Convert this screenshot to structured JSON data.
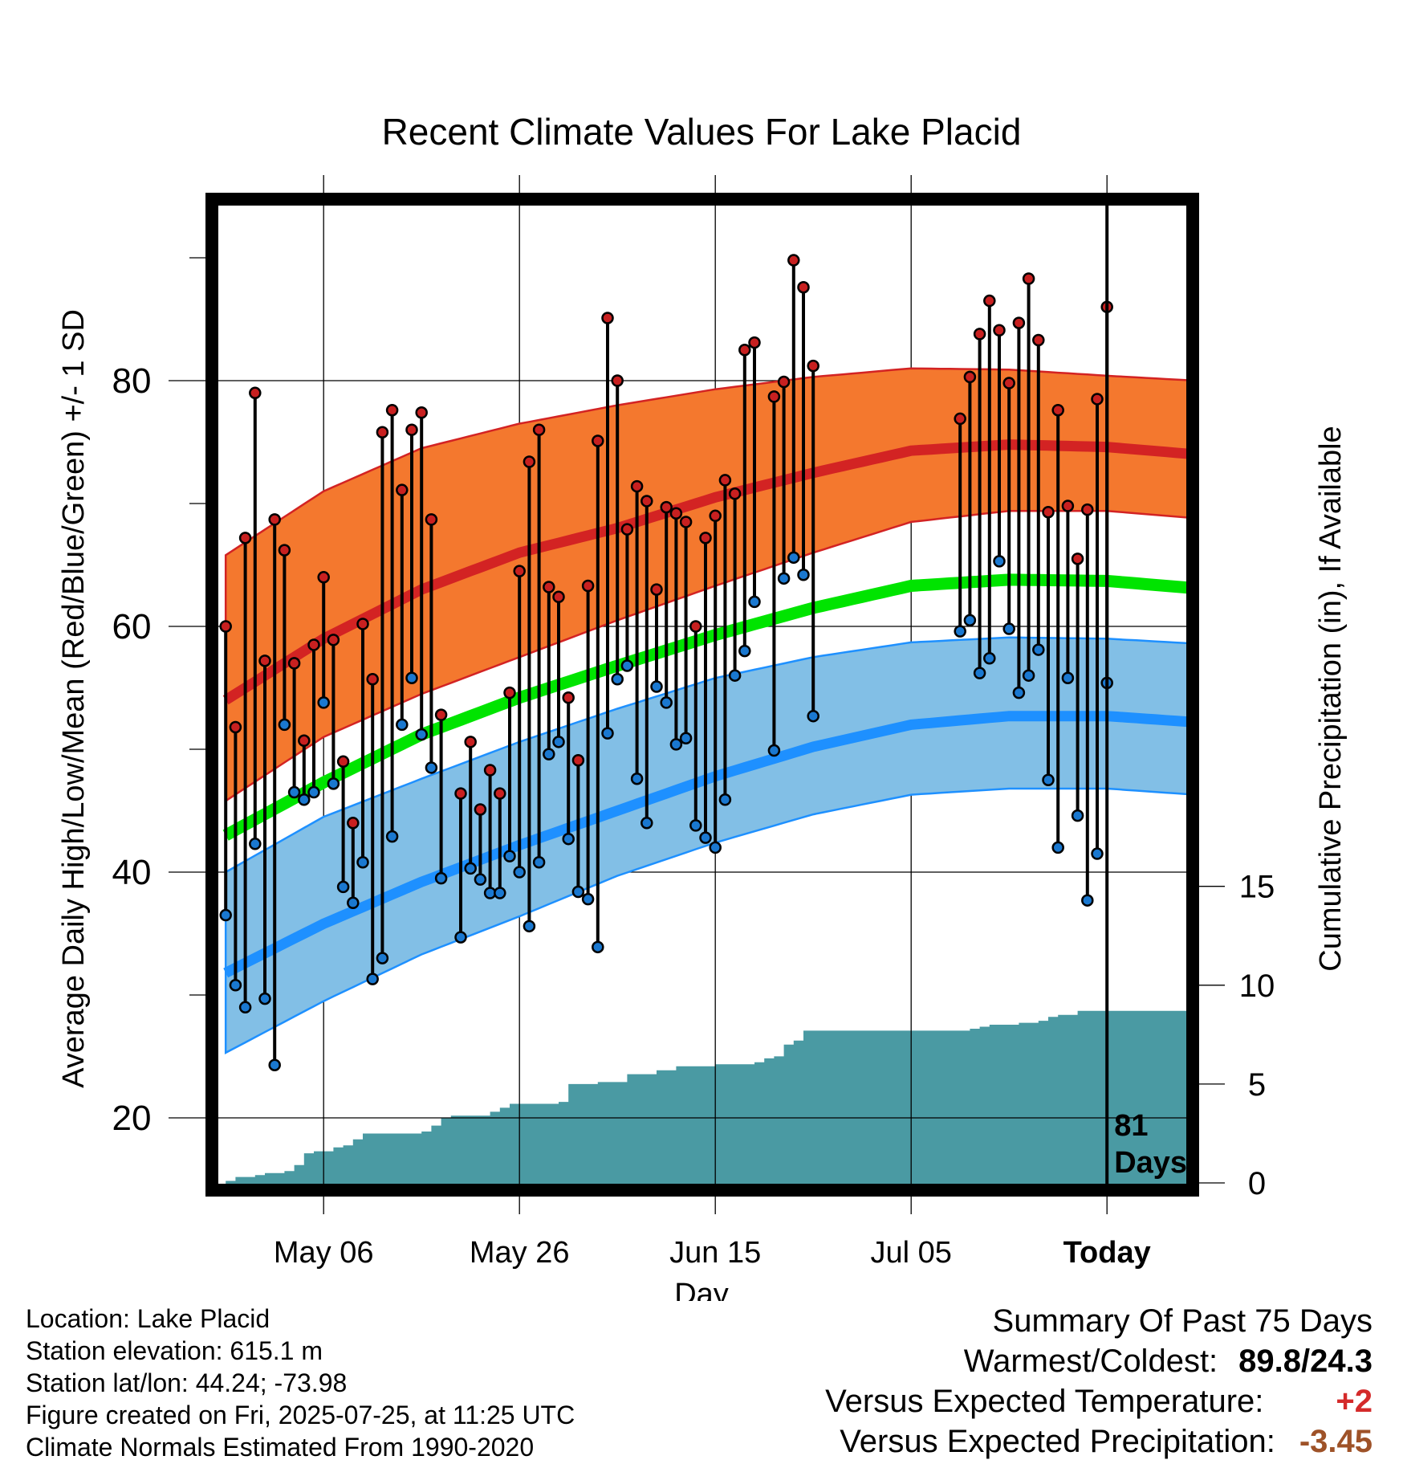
{
  "chart_data": {
    "type": "line",
    "title": "Recent Climate Values For Lake Placid",
    "xlabel": "Day",
    "ylabel_left": "Average Daily High/Low/Mean (Red/Blue/Green) +/- 1 SD",
    "ylabel_right": "Cumulative Precipitation (in), If Available",
    "x_tick_labels": [
      "May 06",
      "May 26",
      "Jun 15",
      "Jul 05",
      "Today"
    ],
    "x_tick_days": [
      10,
      30,
      50,
      70,
      90
    ],
    "x_range_days": [
      -1,
      100
    ],
    "y_left_ticks": [
      20,
      40,
      60,
      80
    ],
    "y_left_range": [
      15,
      90
    ],
    "y_right_ticks": [
      0,
      5,
      10,
      15
    ],
    "today_marker": {
      "line1": "81",
      "line2": "Days"
    },
    "colors": {
      "high_band": "#f4782e",
      "high_mean": "#d32323",
      "low_band": "#82bfe6",
      "low_mean": "#1e90ff",
      "mean_line": "#00e400",
      "precip": "#4a9aa3",
      "high_point": "#c82020",
      "low_point": "#1a78d0"
    },
    "normal_high_mean": [
      [
        0,
        54.0
      ],
      [
        10,
        59.0
      ],
      [
        20,
        63.0
      ],
      [
        30,
        66.0
      ],
      [
        40,
        68.0
      ],
      [
        50,
        70.5
      ],
      [
        60,
        72.5
      ],
      [
        70,
        74.3
      ],
      [
        80,
        74.8
      ],
      [
        90,
        74.6
      ],
      [
        99,
        74.0
      ]
    ],
    "normal_high_upper": [
      [
        0,
        65.8
      ],
      [
        10,
        71.0
      ],
      [
        20,
        74.5
      ],
      [
        30,
        76.5
      ],
      [
        40,
        78.0
      ],
      [
        50,
        79.3
      ],
      [
        60,
        80.3
      ],
      [
        70,
        81.0
      ],
      [
        80,
        80.9
      ],
      [
        90,
        80.4
      ],
      [
        99,
        80.0
      ]
    ],
    "normal_high_lower": [
      [
        0,
        45.8
      ],
      [
        10,
        51.0
      ],
      [
        20,
        54.5
      ],
      [
        30,
        57.5
      ],
      [
        40,
        60.5
      ],
      [
        50,
        63.3
      ],
      [
        60,
        66.0
      ],
      [
        70,
        68.5
      ],
      [
        80,
        69.4
      ],
      [
        90,
        69.4
      ],
      [
        99,
        68.8
      ]
    ],
    "normal_low_mean": [
      [
        0,
        31.8
      ],
      [
        10,
        35.8
      ],
      [
        20,
        39.2
      ],
      [
        30,
        42.2
      ],
      [
        40,
        45.0
      ],
      [
        50,
        47.8
      ],
      [
        60,
        50.2
      ],
      [
        70,
        52.0
      ],
      [
        80,
        52.7
      ],
      [
        90,
        52.7
      ],
      [
        99,
        52.2
      ]
    ],
    "normal_low_upper": [
      [
        0,
        40.0
      ],
      [
        10,
        44.5
      ],
      [
        20,
        47.6
      ],
      [
        30,
        50.6
      ],
      [
        40,
        53.3
      ],
      [
        50,
        55.8
      ],
      [
        60,
        57.5
      ],
      [
        70,
        58.7
      ],
      [
        80,
        59.1
      ],
      [
        90,
        59.0
      ],
      [
        99,
        58.6
      ]
    ],
    "normal_low_lower": [
      [
        0,
        25.3
      ],
      [
        10,
        29.5
      ],
      [
        20,
        33.3
      ],
      [
        30,
        36.4
      ],
      [
        40,
        39.7
      ],
      [
        50,
        42.4
      ],
      [
        60,
        44.7
      ],
      [
        70,
        46.3
      ],
      [
        80,
        46.8
      ],
      [
        90,
        46.8
      ],
      [
        99,
        46.3
      ]
    ],
    "normal_mean": [
      [
        0,
        43.0
      ],
      [
        10,
        47.3
      ],
      [
        20,
        51.2
      ],
      [
        30,
        54.2
      ],
      [
        40,
        56.8
      ],
      [
        50,
        59.3
      ],
      [
        60,
        61.5
      ],
      [
        70,
        63.3
      ],
      [
        80,
        63.8
      ],
      [
        90,
        63.7
      ],
      [
        99,
        63.1
      ]
    ],
    "daily_obs": [
      [
        0,
        60.0,
        36.5
      ],
      [
        1,
        51.8,
        30.8
      ],
      [
        2,
        67.2,
        29.0
      ],
      [
        3,
        79.0,
        42.3
      ],
      [
        4,
        57.2,
        29.7
      ],
      [
        5,
        68.7,
        24.3
      ],
      [
        6,
        66.2,
        52.0
      ],
      [
        7,
        57.0,
        46.5
      ],
      [
        8,
        50.7,
        45.9
      ],
      [
        9,
        58.5,
        46.5
      ],
      [
        10,
        64.0,
        53.8
      ],
      [
        11,
        58.9,
        47.2
      ],
      [
        12,
        49.0,
        38.8
      ],
      [
        13,
        44.0,
        37.5
      ],
      [
        14,
        60.2,
        40.8
      ],
      [
        15,
        55.7,
        31.3
      ],
      [
        16,
        75.8,
        33.0
      ],
      [
        17,
        77.6,
        42.9
      ],
      [
        18,
        71.1,
        52.0
      ],
      [
        19,
        76.0,
        55.8
      ],
      [
        20,
        77.4,
        51.2
      ],
      [
        21,
        68.7,
        48.5
      ],
      [
        22,
        52.8,
        39.5
      ],
      [
        24,
        46.4,
        34.7
      ],
      [
        25,
        50.6,
        40.3
      ],
      [
        26,
        45.1,
        39.4
      ],
      [
        27,
        48.3,
        38.3
      ],
      [
        28,
        46.4,
        38.3
      ],
      [
        29,
        54.6,
        41.3
      ],
      [
        30,
        64.5,
        40.0
      ],
      [
        31,
        73.4,
        35.6
      ],
      [
        32,
        76.0,
        40.8
      ],
      [
        33,
        63.2,
        49.6
      ],
      [
        34,
        62.4,
        50.6
      ],
      [
        35,
        54.2,
        42.7
      ],
      [
        36,
        49.1,
        38.4
      ],
      [
        37,
        63.3,
        37.8
      ],
      [
        38,
        75.1,
        33.9
      ],
      [
        39,
        85.1,
        51.3
      ],
      [
        40,
        80.0,
        55.7
      ],
      [
        41,
        67.9,
        56.8
      ],
      [
        42,
        71.4,
        47.6
      ],
      [
        43,
        70.2,
        44.0
      ],
      [
        44,
        63.0,
        55.1
      ],
      [
        45,
        69.7,
        53.8
      ],
      [
        46,
        69.2,
        50.4
      ],
      [
        47,
        68.5,
        50.9
      ],
      [
        48,
        60.0,
        43.8
      ],
      [
        49,
        67.2,
        42.8
      ],
      [
        50,
        69.0,
        42.0
      ],
      [
        51,
        71.9,
        45.9
      ],
      [
        52,
        70.8,
        56.0
      ],
      [
        53,
        82.5,
        58.0
      ],
      [
        54,
        83.1,
        62.0
      ],
      [
        56,
        78.7,
        49.9
      ],
      [
        57,
        79.9,
        63.9
      ],
      [
        58,
        89.8,
        65.6
      ],
      [
        59,
        87.6,
        64.2
      ],
      [
        60,
        81.2,
        52.7
      ],
      [
        75,
        76.9,
        59.6
      ],
      [
        76,
        80.3,
        60.5
      ],
      [
        77,
        83.8,
        56.2
      ],
      [
        78,
        86.5,
        57.4
      ],
      [
        79,
        84.1,
        65.3
      ],
      [
        80,
        79.8,
        59.8
      ],
      [
        81,
        84.7,
        54.6
      ],
      [
        82,
        88.3,
        56.0
      ],
      [
        83,
        83.3,
        58.1
      ],
      [
        84,
        69.3,
        47.5
      ],
      [
        85,
        77.6,
        42.0
      ],
      [
        86,
        69.8,
        55.8
      ],
      [
        87,
        65.5,
        44.6
      ],
      [
        88,
        69.5,
        37.7
      ],
      [
        89,
        78.5,
        41.5
      ],
      [
        90,
        86.0,
        55.4
      ]
    ],
    "cumulative_precip": [
      [
        0,
        0.1
      ],
      [
        1,
        0.3
      ],
      [
        2,
        0.3
      ],
      [
        3,
        0.4
      ],
      [
        4,
        0.5
      ],
      [
        5,
        0.5
      ],
      [
        6,
        0.6
      ],
      [
        7,
        0.9
      ],
      [
        8,
        1.5
      ],
      [
        9,
        1.6
      ],
      [
        10,
        1.6
      ],
      [
        11,
        1.8
      ],
      [
        12,
        1.9
      ],
      [
        13,
        2.2
      ],
      [
        14,
        2.5
      ],
      [
        15,
        2.5
      ],
      [
        16,
        2.5
      ],
      [
        17,
        2.5
      ],
      [
        18,
        2.5
      ],
      [
        19,
        2.5
      ],
      [
        20,
        2.6
      ],
      [
        21,
        2.9
      ],
      [
        22,
        3.3
      ],
      [
        23,
        3.4
      ],
      [
        24,
        3.4
      ],
      [
        25,
        3.4
      ],
      [
        26,
        3.4
      ],
      [
        27,
        3.6
      ],
      [
        28,
        3.8
      ],
      [
        29,
        4.0
      ],
      [
        30,
        4.0
      ],
      [
        31,
        4.0
      ],
      [
        32,
        4.0
      ],
      [
        33,
        4.0
      ],
      [
        34,
        4.1
      ],
      [
        35,
        5.0
      ],
      [
        36,
        5.0
      ],
      [
        37,
        5.0
      ],
      [
        38,
        5.1
      ],
      [
        39,
        5.1
      ],
      [
        40,
        5.1
      ],
      [
        41,
        5.5
      ],
      [
        42,
        5.5
      ],
      [
        43,
        5.5
      ],
      [
        44,
        5.7
      ],
      [
        45,
        5.7
      ],
      [
        46,
        5.9
      ],
      [
        47,
        5.9
      ],
      [
        48,
        5.9
      ],
      [
        49,
        5.9
      ],
      [
        50,
        6.0
      ],
      [
        51,
        6.0
      ],
      [
        52,
        6.0
      ],
      [
        53,
        6.0
      ],
      [
        54,
        6.1
      ],
      [
        55,
        6.3
      ],
      [
        56,
        6.4
      ],
      [
        57,
        7.0
      ],
      [
        58,
        7.2
      ],
      [
        59,
        7.7
      ],
      [
        60,
        7.7
      ],
      [
        61,
        7.7
      ],
      [
        62,
        7.7
      ],
      [
        63,
        7.7
      ],
      [
        64,
        7.7
      ],
      [
        65,
        7.7
      ],
      [
        66,
        7.7
      ],
      [
        67,
        7.7
      ],
      [
        68,
        7.7
      ],
      [
        69,
        7.7
      ],
      [
        70,
        7.7
      ],
      [
        71,
        7.7
      ],
      [
        72,
        7.7
      ],
      [
        73,
        7.7
      ],
      [
        74,
        7.7
      ],
      [
        75,
        7.7
      ],
      [
        76,
        7.8
      ],
      [
        77,
        7.9
      ],
      [
        78,
        8.0
      ],
      [
        79,
        8.0
      ],
      [
        80,
        8.0
      ],
      [
        81,
        8.1
      ],
      [
        82,
        8.1
      ],
      [
        83,
        8.2
      ],
      [
        84,
        8.4
      ],
      [
        85,
        8.5
      ],
      [
        86,
        8.5
      ],
      [
        87,
        8.7
      ],
      [
        88,
        8.7
      ],
      [
        89,
        8.7
      ],
      [
        90,
        8.7
      ],
      [
        91,
        8.7
      ],
      [
        92,
        8.7
      ],
      [
        93,
        8.7
      ],
      [
        94,
        8.7
      ],
      [
        95,
        8.7
      ],
      [
        96,
        8.7
      ],
      [
        97,
        8.7
      ],
      [
        98,
        8.7
      ],
      [
        99,
        8.7
      ]
    ]
  },
  "info": {
    "location": "Location: Lake Placid",
    "elevation": "Station elevation: 615.1 m",
    "latlon": "Station lat/lon: 44.24; -73.98",
    "created": "Figure created on Fri, 2025-07-25, at 11:25 UTC",
    "normals": "Climate Normals Estimated From 1990-2020"
  },
  "summary": {
    "heading": "Summary Of Past 75 Days",
    "warm_cold_label": "Warmest/Coldest:",
    "warm_cold_value": "89.8/24.3",
    "temp_label": "Versus Expected Temperature:",
    "temp_value": "+2",
    "precip_label": "Versus Expected Precipitation:",
    "precip_value": "-3.45"
  }
}
